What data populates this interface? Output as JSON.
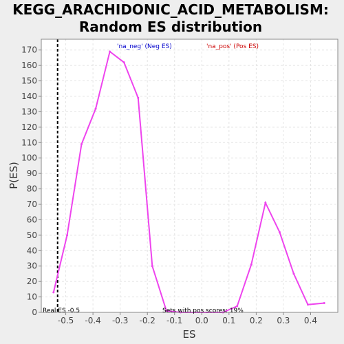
{
  "chart_data": {
    "type": "line",
    "title_line1": "KEGG_ARACHIDONIC_ACID_METABOLISM:",
    "title_line2": "Random ES distribution",
    "xlabel": "ES",
    "ylabel": "P(ES)",
    "xlim": [
      -0.59,
      0.5
    ],
    "ylim": [
      0,
      177
    ],
    "x_ticks": [
      -0.5,
      -0.4,
      -0.3,
      -0.2,
      -0.1,
      0.0,
      0.1,
      0.2,
      0.3,
      0.4
    ],
    "x_tick_labels": [
      "-0.5",
      "-0.4",
      "-0.3",
      "-0.2",
      "-0.1",
      "0.0",
      "0.1",
      "0.2",
      "0.3",
      "0.4"
    ],
    "y_ticks": [
      0,
      10,
      20,
      30,
      40,
      50,
      60,
      70,
      80,
      90,
      100,
      110,
      120,
      130,
      140,
      150,
      160,
      170
    ],
    "y_tick_labels": [
      "0",
      "10",
      "20",
      "30",
      "40",
      "50",
      "60",
      "70",
      "80",
      "90",
      "100",
      "110",
      "120",
      "130",
      "140",
      "150",
      "160",
      "170"
    ],
    "grid": true,
    "series": [
      {
        "color": "#ee44ee",
        "x": [
          -0.545,
          -0.495,
          -0.442,
          -0.39,
          -0.338,
          -0.286,
          -0.234,
          -0.182,
          -0.13,
          -0.078,
          0.078,
          0.13,
          0.182,
          0.234,
          0.286,
          0.338,
          0.39,
          0.45
        ],
        "y": [
          13,
          50,
          109,
          132,
          169,
          162,
          139,
          30,
          1,
          0,
          0,
          4,
          31,
          71,
          52,
          25,
          5,
          6
        ]
      }
    ],
    "real_es": -0.53,
    "annotations": {
      "neg_label": "'na_neg' (Neg ES)",
      "pos_label": "'na_pos' (Pos ES)",
      "real_es_label": "Real ES -0.5",
      "pos_scores_label": "Sets with pos scores: 19%"
    },
    "colors": {
      "neg": "#0000cc",
      "pos": "#cc0000",
      "plot_bg": "#ffffff",
      "frame": "#888888"
    }
  }
}
